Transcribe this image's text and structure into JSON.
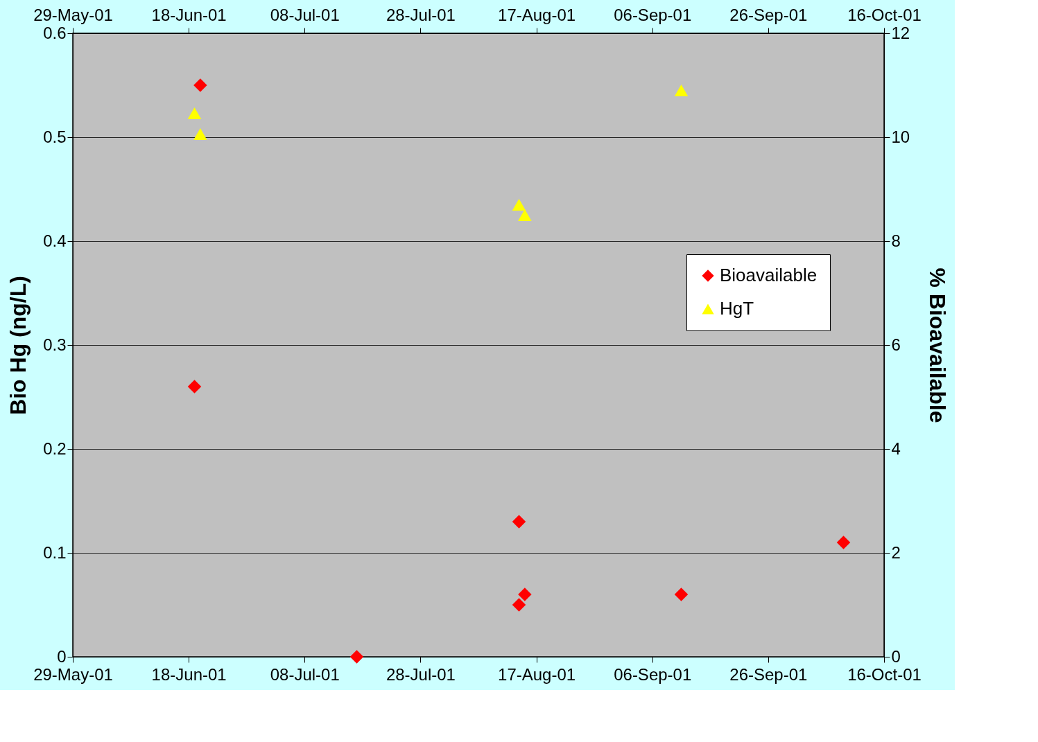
{
  "chart_data": {
    "type": "scatter",
    "xlabel": null,
    "ylabel": "Bio Hg (ng/L)",
    "y2label": "% Bioavailable",
    "xlim": [
      "2001-05-29",
      "2001-10-16"
    ],
    "xticks": [
      {
        "value": "2001-05-29",
        "label": "29-May-01"
      },
      {
        "value": "2001-06-18",
        "label": "18-Jun-01"
      },
      {
        "value": "2001-07-08",
        "label": "08-Jul-01"
      },
      {
        "value": "2001-07-28",
        "label": "28-Jul-01"
      },
      {
        "value": "2001-08-17",
        "label": "17-Aug-01"
      },
      {
        "value": "2001-09-06",
        "label": "06-Sep-01"
      },
      {
        "value": "2001-09-26",
        "label": "26-Sep-01"
      },
      {
        "value": "2001-10-16",
        "label": "16-Oct-01"
      }
    ],
    "x2lim": [
      "2001-05-29",
      "2001-10-16"
    ],
    "x2ticks": [
      {
        "value": "2001-05-29",
        "label": "29-May-01"
      },
      {
        "value": "2001-06-18",
        "label": "18-Jun-01"
      },
      {
        "value": "2001-07-08",
        "label": "08-Jul-01"
      },
      {
        "value": "2001-07-28",
        "label": "28-Jul-01"
      },
      {
        "value": "2001-08-17",
        "label": "17-Aug-01"
      },
      {
        "value": "2001-09-06",
        "label": "06-Sep-01"
      },
      {
        "value": "2001-09-26",
        "label": "26-Sep-01"
      },
      {
        "value": "2001-10-16",
        "label": "16-Oct-01"
      }
    ],
    "ylim": [
      0,
      0.6
    ],
    "yticks": [
      0,
      0.1,
      0.2,
      0.3,
      0.4,
      0.5,
      0.6
    ],
    "y2lim": [
      0,
      12
    ],
    "y2ticks": [
      0,
      2,
      4,
      6,
      8,
      10,
      12
    ],
    "grid": "y",
    "legend": "right",
    "series": [
      {
        "name": "Bioavailable",
        "color": "#ff0000",
        "marker": "diamond",
        "x": [
          "2001-06-20",
          "2001-06-19",
          "2001-07-17",
          "2001-08-14",
          "2001-08-14",
          "2001-08-15",
          "2001-09-11",
          "2001-10-09"
        ],
        "values": [
          0.55,
          0.26,
          0.0,
          0.13,
          0.05,
          0.06,
          0.06,
          0.11
        ]
      },
      {
        "name": "HgT",
        "color": "#ffff00",
        "marker": "triangle",
        "x": [
          "2001-06-19",
          "2001-06-20",
          "2001-08-14",
          "2001-08-15",
          "2001-09-11"
        ],
        "values": [
          0.523,
          0.503,
          0.435,
          0.425,
          0.545
        ]
      }
    ]
  }
}
